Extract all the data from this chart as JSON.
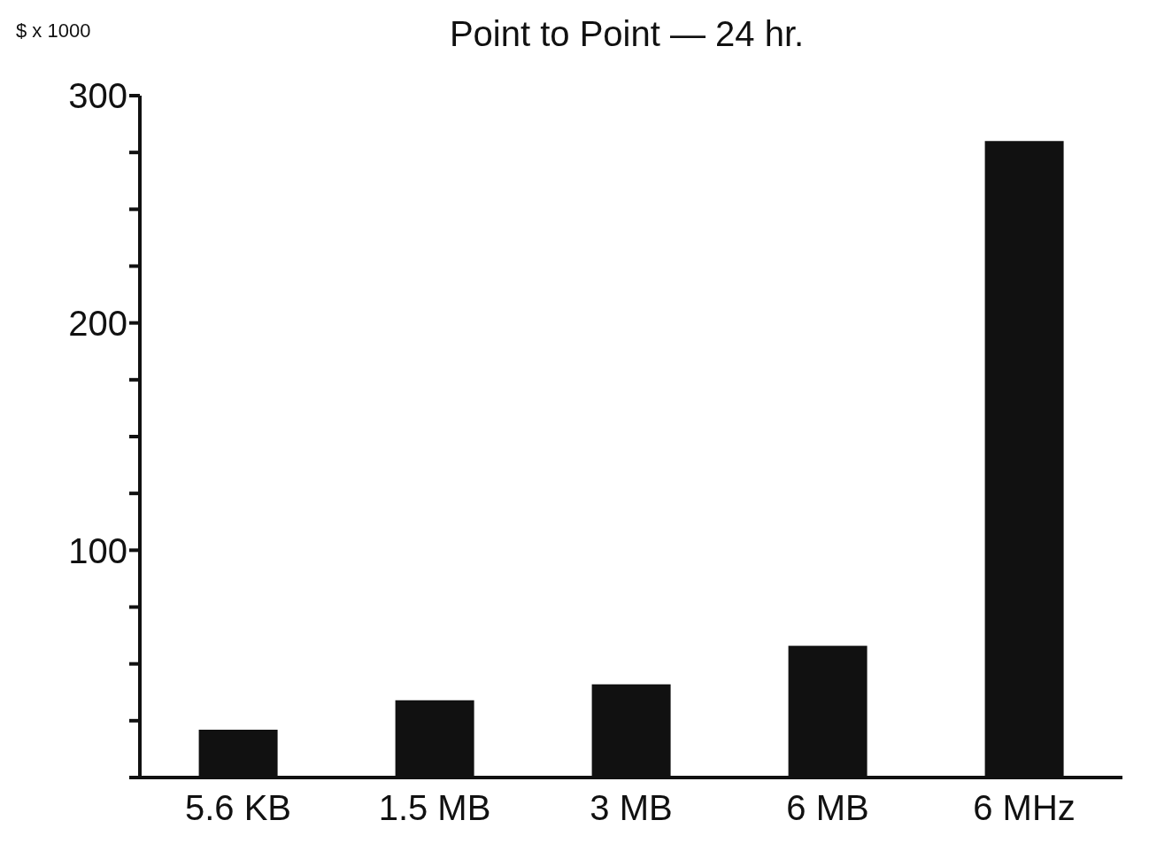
{
  "chart_data": {
    "type": "bar",
    "title": "Point to Point — 24 hr.",
    "ylabel": "$ x 1000",
    "categories": [
      "5.6 KB",
      "1.5 MB",
      "3 MB",
      "6 MB",
      "6 MHz"
    ],
    "values": [
      21,
      34,
      41,
      58,
      280
    ],
    "color": "#111111",
    "ylim": [
      0,
      300
    ],
    "yticks": [
      {
        "value": 0,
        "label": null
      },
      {
        "value": 25,
        "label": null
      },
      {
        "value": 50,
        "label": null
      },
      {
        "value": 75,
        "label": null
      },
      100,
      {
        "value": 125,
        "label": null
      },
      {
        "value": 150,
        "label": null
      },
      {
        "value": 175,
        "label": null
      },
      200,
      {
        "value": 225,
        "label": null
      },
      {
        "value": 250,
        "label": null
      },
      {
        "value": 275,
        "label": null
      },
      300
    ],
    "grid": false,
    "legend": false
  }
}
